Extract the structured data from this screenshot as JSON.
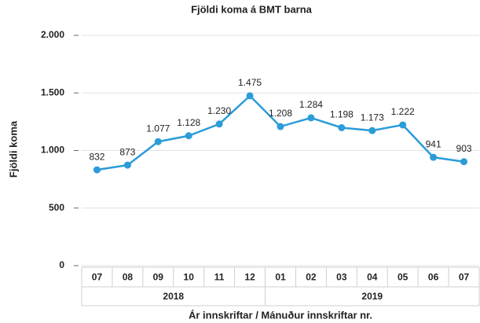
{
  "chart_data": {
    "type": "line",
    "title": "Fjöldi koma á BMT barna",
    "ylabel": "Fjöldi koma",
    "xlabel": "Ár innskriftar / Mánuður innskriftar nr.",
    "categories": [
      "07",
      "08",
      "09",
      "10",
      "11",
      "12",
      "01",
      "02",
      "03",
      "04",
      "05",
      "06",
      "07"
    ],
    "x_groups": [
      {
        "label": "2018",
        "size": 6
      },
      {
        "label": "2019",
        "size": 7
      }
    ],
    "series": [
      {
        "name": "Fjöldi koma",
        "color": "#2b9cd8",
        "values": [
          832,
          873,
          1077,
          1128,
          1230,
          1475,
          1208,
          1284,
          1198,
          1173,
          1222,
          941,
          903
        ],
        "value_labels": [
          "832",
          "873",
          "1.077",
          "1.128",
          "1.230",
          "1.475",
          "1.208",
          "1.284",
          "1.198",
          "1.173",
          "1.222",
          "941",
          "903"
        ]
      }
    ],
    "ylim": [
      0,
      2000
    ],
    "yticks": [
      0,
      500,
      {
        "value": 1000,
        "label": "1.000"
      },
      {
        "value": 1500,
        "label": "1.500"
      },
      {
        "value": 2000,
        "label": "2.000"
      }
    ],
    "grid": true
  }
}
